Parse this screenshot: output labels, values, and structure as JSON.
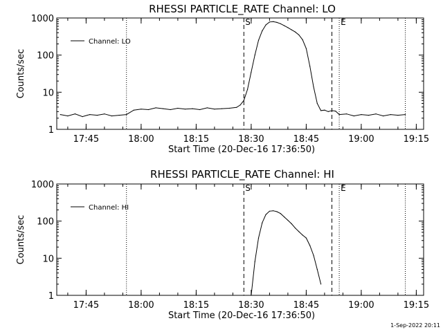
{
  "footer": "1-Sep-2022 20:11",
  "chart_data": [
    {
      "type": "line",
      "title": "RHESSI PARTICLE_RATE Channel: LO",
      "xlabel": "Start Time (20-Dec-16 17:36:50)",
      "ylabel": "Counts/sec",
      "y_scale": "log",
      "ylim": [
        1,
        1000
      ],
      "y_ticks": [
        1,
        10,
        100,
        1000
      ],
      "y_tick_labels": [
        "1",
        "10",
        "100",
        "1000"
      ],
      "xlim": [
        "17:37",
        "19:17"
      ],
      "x_ticks": [
        "17:45",
        "18:00",
        "18:15",
        "18:30",
        "18:45",
        "19:00",
        "19:15"
      ],
      "legend": {
        "position": "top-left",
        "label": "Channel: LO"
      },
      "markers": [
        {
          "time": "18:28",
          "style": "dashed",
          "label": "S"
        },
        {
          "time": "18:52",
          "style": "dashed",
          "label": ""
        },
        {
          "time": "17:56",
          "style": "dotted",
          "label": ""
        },
        {
          "time": "18:54",
          "style": "dotted",
          "label": "E"
        },
        {
          "time": "19:12",
          "style": "dotted",
          "label": ""
        }
      ],
      "series": [
        {
          "name": "Channel: LO",
          "x": [
            "17:38",
            "17:40",
            "17:42",
            "17:44",
            "17:46",
            "17:48",
            "17:50",
            "17:52",
            "17:54",
            "17:56",
            "17:58",
            "18:00",
            "18:02",
            "18:04",
            "18:06",
            "18:08",
            "18:10",
            "18:12",
            "18:14",
            "18:16",
            "18:18",
            "18:20",
            "18:22",
            "18:24",
            "18:26",
            "18:27",
            "18:28",
            "18:29",
            "18:30",
            "18:31",
            "18:32",
            "18:33",
            "18:34",
            "18:35",
            "18:36",
            "18:37",
            "18:38",
            "18:39",
            "18:40",
            "18:41",
            "18:42",
            "18:43",
            "18:44",
            "18:45",
            "18:46",
            "18:47",
            "18:48",
            "18:49",
            "18:50",
            "18:51",
            "18:52",
            "18:53",
            "18:54",
            "18:56",
            "18:58",
            "19:00",
            "19:02",
            "19:04",
            "19:06",
            "19:08",
            "19:10",
            "19:12"
          ],
          "y": [
            2.5,
            2.3,
            2.6,
            2.2,
            2.5,
            2.4,
            2.6,
            2.3,
            2.4,
            2.5,
            3.3,
            3.5,
            3.4,
            3.8,
            3.6,
            3.4,
            3.7,
            3.5,
            3.6,
            3.4,
            3.8,
            3.5,
            3.6,
            3.7,
            3.9,
            4.5,
            6,
            12,
            35,
            100,
            250,
            450,
            650,
            780,
            800,
            760,
            700,
            620,
            550,
            480,
            420,
            350,
            260,
            150,
            50,
            14,
            5,
            3.2,
            3.3,
            3,
            3.2,
            3.1,
            2.5,
            2.6,
            2.3,
            2.5,
            2.4,
            2.6,
            2.3,
            2.5,
            2.4,
            2.5
          ]
        }
      ]
    },
    {
      "type": "line",
      "title": "RHESSI PARTICLE_RATE Channel: HI",
      "xlabel": "Start Time (20-Dec-16 17:36:50)",
      "ylabel": "Counts/sec",
      "y_scale": "log",
      "ylim": [
        1,
        1000
      ],
      "y_ticks": [
        1,
        10,
        100,
        1000
      ],
      "y_tick_labels": [
        "1",
        "10",
        "100",
        "1000"
      ],
      "xlim": [
        "17:37",
        "19:17"
      ],
      "x_ticks": [
        "17:45",
        "18:00",
        "18:15",
        "18:30",
        "18:45",
        "19:00",
        "19:15"
      ],
      "legend": {
        "position": "top-left",
        "label": "Channel: HI"
      },
      "markers": [
        {
          "time": "18:28",
          "style": "dashed",
          "label": "S"
        },
        {
          "time": "18:52",
          "style": "dashed",
          "label": ""
        },
        {
          "time": "17:56",
          "style": "dotted",
          "label": ""
        },
        {
          "time": "18:54",
          "style": "dotted",
          "label": "E"
        },
        {
          "time": "19:12",
          "style": "dotted",
          "label": ""
        }
      ],
      "series": [
        {
          "name": "Channel: HI",
          "x": [
            "18:30",
            "18:31",
            "18:32",
            "18:33",
            "18:34",
            "18:35",
            "18:36",
            "18:37",
            "18:38",
            "18:39",
            "18:40",
            "18:41",
            "18:42",
            "18:43",
            "18:44",
            "18:45",
            "18:46",
            "18:47",
            "18:48",
            "18:49"
          ],
          "y": [
            1,
            8,
            35,
            90,
            150,
            185,
            190,
            180,
            160,
            130,
            105,
            85,
            65,
            52,
            42,
            35,
            22,
            12,
            5,
            2
          ]
        }
      ]
    }
  ]
}
